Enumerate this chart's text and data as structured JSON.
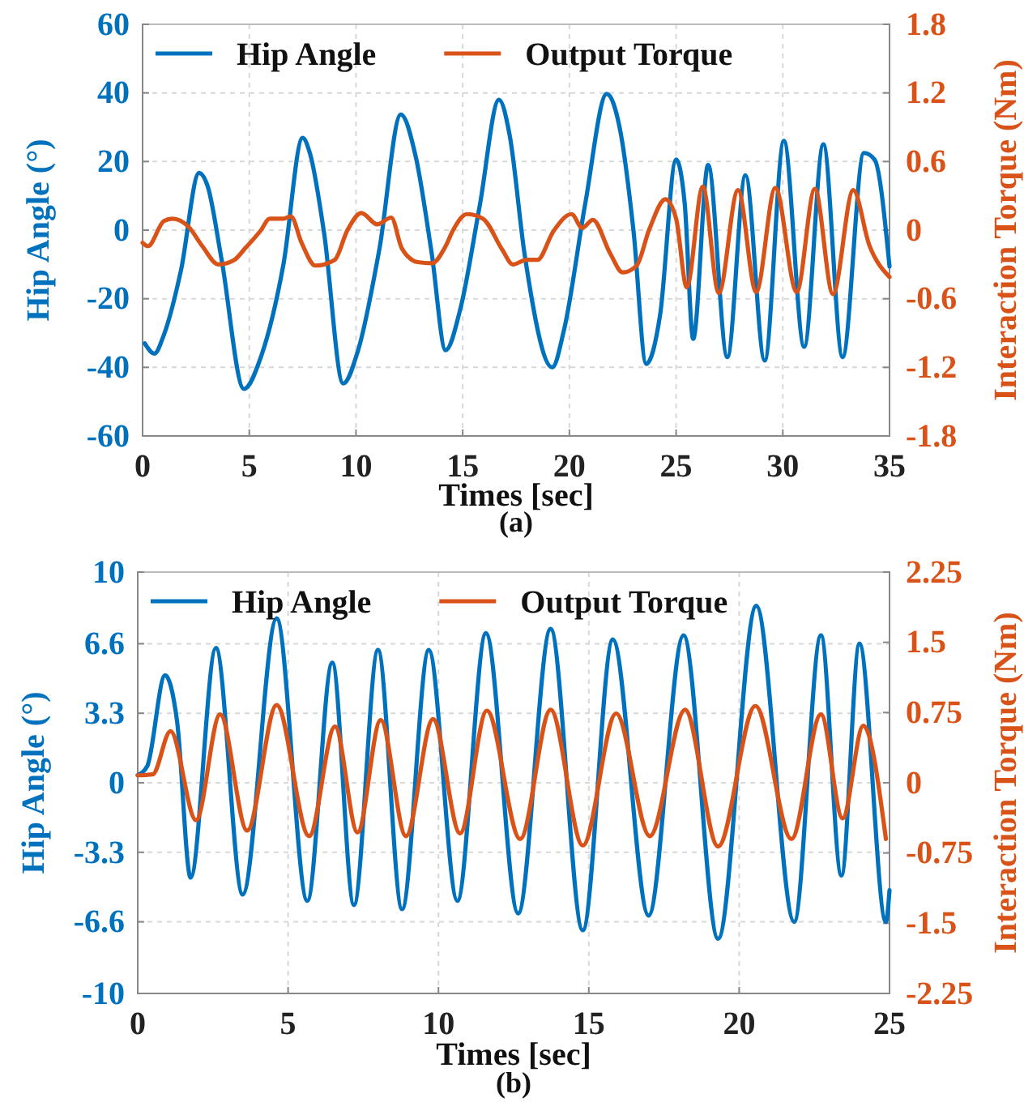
{
  "chart_data": [
    {
      "type": "line",
      "xlabel": "Times [sec]",
      "ylabel": "Hip Angle (°)",
      "y2label": "Interaction Torque (Nm)",
      "annotations": [
        "(a)"
      ],
      "xlim": [
        0,
        35
      ],
      "xticks": [
        0,
        5,
        10,
        15,
        20,
        25,
        30,
        35
      ],
      "ylim": [
        -60,
        60
      ],
      "yticks": [
        -60,
        -40,
        -20,
        0,
        20,
        40,
        60
      ],
      "y2lim": [
        -1.8,
        1.8
      ],
      "y2ticks": [
        -1.8,
        -1.2,
        -0.6,
        0,
        0.6,
        1.2,
        1.8
      ],
      "grid": true,
      "legend": "top",
      "line_style": "solid",
      "marker": "none",
      "series": [
        {
          "name": "Hip Angle",
          "color": "#0072bd",
          "x": [
            0.1,
            0.55,
            1.0,
            1.8,
            2.65,
            3.05,
            3.7,
            4.75,
            5.55,
            6.6,
            7.5,
            7.85,
            8.5,
            9.4,
            10.1,
            11.1,
            12.1,
            12.8,
            13.55,
            14.2,
            14.9,
            15.8,
            16.7,
            17.2,
            17.9,
            19.2,
            19.75,
            20.75,
            21.75,
            22.4,
            23.0,
            23.6,
            24.25,
            25.0,
            25.4,
            25.8,
            26.5,
            27.4,
            28.25,
            29.15,
            30.05,
            31.0,
            31.9,
            32.8,
            33.8,
            34.3,
            35.0
          ],
          "values": [
            -33,
            -36,
            -30.5,
            -11.7,
            16.7,
            12.8,
            -8.5,
            -46.3,
            -36.9,
            -10,
            26.9,
            22.2,
            -0.6,
            -44.7,
            -35,
            -5.4,
            33.7,
            21.4,
            -6.9,
            -35,
            -22.7,
            7.2,
            38,
            27.7,
            -7,
            -40,
            -29,
            8,
            39.7,
            28.4,
            0,
            -39,
            -24.7,
            20.6,
            8,
            -31.7,
            19,
            -37,
            16,
            -38,
            26,
            -34,
            25,
            -37,
            22.5,
            20.6,
            -10.6
          ]
        },
        {
          "name": "Output Torque",
          "color": "#d95319",
          "axis": "y2",
          "x": [
            0,
            0.25,
            1.0,
            1.4,
            2.15,
            2.8,
            3.55,
            4.3,
            4.8,
            5.55,
            5.95,
            6.6,
            6.95,
            7.45,
            8.1,
            9.0,
            9.6,
            10.25,
            11.0,
            11.65,
            12.15,
            12.9,
            13.55,
            14.2,
            14.55,
            15.2,
            15.95,
            16.85,
            17.35,
            18.0,
            18.5,
            19.25,
            20.1,
            20.6,
            21.1,
            21.9,
            22.5,
            23.15,
            23.75,
            24.5,
            25.0,
            25.5,
            26.25,
            27.0,
            27.9,
            28.75,
            29.65,
            30.65,
            31.5,
            32.35,
            33.3,
            34.05,
            35.0
          ],
          "values": [
            -0.11,
            -0.14,
            0.08,
            0.1,
            0.03,
            -0.14,
            -0.3,
            -0.26,
            -0.16,
            0,
            0.1,
            0.1,
            0.12,
            -0.11,
            -0.31,
            -0.26,
            0,
            0.15,
            0.05,
            0.11,
            -0.16,
            -0.28,
            -0.29,
            -0.14,
            0,
            0.14,
            0.1,
            -0.17,
            -0.3,
            -0.26,
            -0.26,
            -0.01,
            0.14,
            0.02,
            0.09,
            -0.2,
            -0.37,
            -0.31,
            0.01,
            0.27,
            0.1,
            -0.5,
            0.38,
            -0.55,
            0.35,
            -0.54,
            0.37,
            -0.54,
            0.36,
            -0.56,
            0.35,
            -0.13,
            -0.41
          ]
        }
      ]
    },
    {
      "type": "line",
      "xlabel": "Times [sec]",
      "ylabel": "Hip Angle (°)",
      "y2label": "Interaction Torque (Nm)",
      "annotations": [
        "(b)"
      ],
      "xlim": [
        0,
        25
      ],
      "xticks": [
        0,
        5,
        10,
        15,
        20,
        25
      ],
      "ylim": [
        -10,
        10
      ],
      "yticks": [
        -10,
        -6.6,
        -3.3,
        0,
        3.3,
        6.6,
        10
      ],
      "y2lim": [
        -2.25,
        2.25
      ],
      "y2ticks": [
        -2.25,
        -1.5,
        -0.75,
        0,
        0.75,
        1.5,
        2.25
      ],
      "grid": true,
      "legend": "top",
      "line_style": "solid",
      "marker": "none",
      "series": [
        {
          "name": "Hip Angle",
          "color": "#0072bd",
          "x": [
            0,
            0.32,
            0.91,
            1.31,
            1.76,
            2.6,
            3.49,
            4.62,
            5.64,
            6.47,
            7.19,
            7.99,
            8.79,
            9.68,
            10.63,
            11.58,
            12.65,
            13.73,
            14.8,
            15.8,
            16.99,
            18.15,
            19.3,
            20.57,
            21.83,
            22.72,
            23.4,
            24.0,
            24.88,
            25.0
          ],
          "values": [
            0.36,
            0.8,
            5.1,
            2.9,
            -4.5,
            6.4,
            -5.3,
            7.8,
            -5.6,
            5.7,
            -5.8,
            6.3,
            -6.0,
            6.3,
            -5.6,
            7.1,
            -6.2,
            7.3,
            -7.0,
            6.8,
            -6.3,
            7.0,
            -7.4,
            8.4,
            -6.6,
            7.0,
            -4.4,
            6.6,
            -6.6,
            -5.1
          ]
        },
        {
          "name": "Output Torque",
          "color": "#d95319",
          "axis": "y2",
          "x": [
            0,
            0.5,
            1.09,
            1.94,
            2.74,
            3.64,
            4.62,
            5.7,
            6.56,
            7.31,
            8.08,
            8.92,
            9.82,
            10.72,
            11.61,
            12.72,
            13.73,
            14.8,
            15.91,
            17.03,
            18.2,
            19.3,
            20.54,
            21.74,
            22.72,
            23.44,
            24.13,
            24.88
          ],
          "values": [
            0.08,
            0.09,
            0.55,
            -0.4,
            0.73,
            -0.51,
            0.83,
            -0.57,
            0.6,
            -0.53,
            0.67,
            -0.57,
            0.68,
            -0.54,
            0.77,
            -0.6,
            0.78,
            -0.67,
            0.74,
            -0.57,
            0.78,
            -0.68,
            0.82,
            -0.6,
            0.73,
            -0.38,
            0.61,
            -0.6
          ]
        }
      ]
    }
  ]
}
